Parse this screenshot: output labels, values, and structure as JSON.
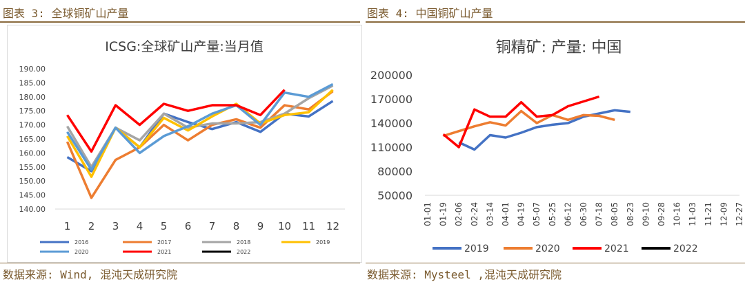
{
  "figures": {
    "left_heading": "图表 3: 全球铜矿山产量",
    "right_heading": "图表 4: 中国铜矿山产量",
    "left_source": "数据来源: Wind, 混沌天成研究院",
    "right_source": "数据来源: Mysteel ,混沌天成研究院"
  },
  "chart_data": [
    {
      "type": "line",
      "title": "ICSG:全球矿山产量:当月值",
      "xlabel": "",
      "ylabel": "",
      "categories": [
        "1",
        "2",
        "3",
        "4",
        "5",
        "6",
        "7",
        "8",
        "9",
        "10",
        "11",
        "12"
      ],
      "ylim": [
        140,
        190
      ],
      "yticks": [
        "140.00",
        "145.00",
        "150.00",
        "155.00",
        "160.00",
        "165.00",
        "170.00",
        "175.00",
        "180.00",
        "185.00",
        "190.00"
      ],
      "grid": false,
      "legend_position": "bottom",
      "series": [
        {
          "name": "2016",
          "color": "#4472c4",
          "values": [
            158.5,
            153.5,
            169,
            162,
            174,
            171,
            168.5,
            171,
            167.5,
            174,
            173,
            178.5
          ]
        },
        {
          "name": "2017",
          "color": "#ed7d31",
          "values": [
            164,
            144,
            157.5,
            162,
            170,
            164.5,
            170,
            172,
            169,
            177,
            175.5,
            182
          ]
        },
        {
          "name": "2018",
          "color": "#a5a5a5",
          "values": [
            169.5,
            155,
            169,
            164.5,
            174,
            169,
            170.5,
            170.5,
            171,
            174,
            179.5,
            184
          ]
        },
        {
          "name": "2019",
          "color": "#ffc000",
          "values": [
            166,
            151.5,
            169,
            162,
            172.5,
            168,
            173,
            177.5,
            170.5,
            173.5,
            174.5,
            182.5
          ]
        },
        {
          "name": "2020",
          "color": "#5b9bd5",
          "values": [
            167.5,
            154,
            169,
            160,
            166,
            169.5,
            174,
            177,
            170,
            181.5,
            180,
            184.5
          ]
        },
        {
          "name": "2021",
          "color": "#ff0000",
          "values": [
            173.5,
            160.5,
            177,
            170,
            177.5,
            175,
            177,
            177,
            173.5,
            182.5,
            null,
            null
          ]
        },
        {
          "name": "2022",
          "color": "#000000",
          "values": [
            null,
            null,
            null,
            null,
            null,
            null,
            null,
            null,
            null,
            null,
            null,
            null
          ]
        }
      ]
    },
    {
      "type": "line",
      "title": "铜精矿: 产量: 中国",
      "xlabel": "",
      "ylabel": "",
      "categories": [
        "01-01",
        "01-19",
        "02-06",
        "02-24",
        "03-14",
        "04-01",
        "04-19",
        "05-07",
        "05-25",
        "06-12",
        "06-30",
        "07-18",
        "08-05",
        "08-23",
        "09-10",
        "09-28",
        "10-16",
        "11-03",
        "11-21",
        "12-09",
        "12-27"
      ],
      "ylim": [
        50000,
        200000
      ],
      "yticks": [
        "50000",
        "80000",
        "110000",
        "140000",
        "170000",
        "200000"
      ],
      "grid": false,
      "legend_position": "bottom",
      "series": [
        {
          "name": "2019",
          "color": "#4472c4",
          "points": [
            [
              2,
              116000
            ],
            [
              3,
              107000
            ],
            [
              4,
              125000
            ],
            [
              5,
              122000
            ],
            [
              6,
              128000
            ],
            [
              7,
              135000
            ],
            [
              8,
              138000
            ],
            [
              9,
              140000
            ],
            [
              10,
              148000
            ],
            [
              11,
              152000
            ],
            [
              12,
              156000
            ],
            [
              13,
              154000
            ]
          ]
        },
        {
          "name": "2020",
          "color": "#ed7d31",
          "points": [
            [
              1,
              124000
            ],
            [
              2,
              130000
            ],
            [
              3,
              136000
            ],
            [
              4,
              141000
            ],
            [
              5,
              137000
            ],
            [
              6,
              155000
            ],
            [
              7,
              140000
            ],
            [
              8,
              150000
            ],
            [
              9,
              144000
            ],
            [
              10,
              150000
            ],
            [
              11,
              149000
            ],
            [
              12,
              144000
            ]
          ]
        },
        {
          "name": "2021",
          "color": "#ff0000",
          "points": [
            [
              1,
              126000
            ],
            [
              2,
              110000
            ],
            [
              3,
              157000
            ],
            [
              4,
              148000
            ],
            [
              5,
              148000
            ],
            [
              6,
              166000
            ],
            [
              7,
              148000
            ],
            [
              8,
              150000
            ],
            [
              9,
              161000
            ],
            [
              10,
              167000
            ],
            [
              11,
              173000
            ]
          ]
        },
        {
          "name": "2022",
          "color": "#000000",
          "points": []
        }
      ]
    }
  ]
}
